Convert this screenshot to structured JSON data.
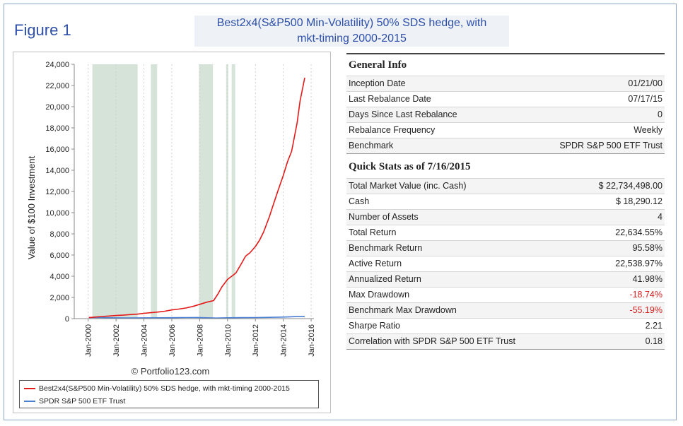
{
  "figure_label": "Figure 1",
  "figure_title_line1": "Best2x4(S&P500 Min-Volatility) 50% SDS hedge, with",
  "figure_title_line2": "mkt-timing 2000-2015",
  "watermark": "© Portfolio123.com",
  "general_info": {
    "title": "General Info",
    "rows": [
      {
        "label": "Inception Date",
        "value": "01/21/00"
      },
      {
        "label": "Last Rebalance Date",
        "value": "07/17/15"
      },
      {
        "label": "Days Since Last Rebalance",
        "value": "0"
      },
      {
        "label": "Rebalance Frequency",
        "value": "Weekly"
      },
      {
        "label": "Benchmark",
        "value": "SPDR S&P 500 ETF Trust"
      }
    ]
  },
  "quick_stats": {
    "title": "Quick Stats as of 7/16/2015",
    "rows": [
      {
        "label": "Total Market Value (inc. Cash)",
        "value": "$ 22,734,498.00",
        "negative": false
      },
      {
        "label": "Cash",
        "value": "$ 18,290.12",
        "negative": false
      },
      {
        "label": "Number of Assets",
        "value": "4",
        "negative": false
      },
      {
        "label": "Total Return",
        "value": "22,634.55%",
        "negative": false
      },
      {
        "label": "Benchmark Return",
        "value": "95.58%",
        "negative": false
      },
      {
        "label": "Active Return",
        "value": "22,538.97%",
        "negative": false
      },
      {
        "label": "Annualized Return",
        "value": "41.98%",
        "negative": false
      },
      {
        "label": "Max Drawdown",
        "value": "-18.74%",
        "negative": true
      },
      {
        "label": "Benchmark Max Drawdown",
        "value": "-55.19%",
        "negative": true
      },
      {
        "label": "Sharpe Ratio",
        "value": "2.21",
        "negative": false
      },
      {
        "label": "Correlation with SPDR S&P 500 ETF Trust",
        "value": "0.18",
        "negative": false
      }
    ]
  },
  "chart_data": {
    "type": "line",
    "title": "",
    "xlabel": "",
    "ylabel": "Value of $100 Investment",
    "xlim": [
      1999.0,
      2016.2
    ],
    "ylim": [
      0,
      24000
    ],
    "yticks": [
      "0",
      "2,000",
      "4,000",
      "6,000",
      "8,000",
      "10,000",
      "12,000",
      "14,000",
      "16,000",
      "18,000",
      "20,000",
      "22,000",
      "24,000"
    ],
    "ytick_values": [
      0,
      2000,
      4000,
      6000,
      8000,
      10000,
      12000,
      14000,
      16000,
      18000,
      20000,
      22000,
      24000
    ],
    "xticks": [
      "Jan-2000",
      "Jan-2002",
      "Jan-2004",
      "Jan-2006",
      "Jan-2008",
      "Jan-2010",
      "Jan-2012",
      "Jan-2014",
      "Jan-2016"
    ],
    "xtick_values": [
      2000,
      2002,
      2004,
      2006,
      2008,
      2010,
      2012,
      2014,
      2016
    ],
    "grid": true,
    "shaded_periods": [
      [
        2000.3,
        2003.55
      ],
      [
        2004.5,
        2004.95
      ],
      [
        2007.95,
        2008.95
      ],
      [
        2009.9,
        2010.05
      ],
      [
        2010.3,
        2010.55
      ]
    ],
    "shade_color": "#d5e3d8",
    "series": [
      {
        "name": "Best2x4(S&P500 Min-Volatility) 50% SDS hedge, with mkt-timing 2000-2015",
        "color": "#e41a1a",
        "x": [
          2000.05,
          2000.5,
          2001.0,
          2001.5,
          2002.0,
          2002.5,
          2003.0,
          2003.5,
          2004.0,
          2004.5,
          2005.0,
          2005.5,
          2006.0,
          2006.5,
          2007.0,
          2007.5,
          2008.0,
          2008.5,
          2009.0,
          2009.3,
          2009.6,
          2010.0,
          2010.3,
          2010.6,
          2011.0,
          2011.3,
          2011.6,
          2012.0,
          2012.3,
          2012.6,
          2013.0,
          2013.3,
          2013.6,
          2014.0,
          2014.3,
          2014.6,
          2015.0,
          2015.2,
          2015.54
        ],
        "y": [
          100,
          150,
          200,
          250,
          290,
          330,
          380,
          420,
          500,
          560,
          620,
          700,
          820,
          900,
          1000,
          1150,
          1350,
          1550,
          1700,
          2300,
          3000,
          3700,
          4000,
          4300,
          5200,
          5900,
          6200,
          6800,
          7400,
          8200,
          9600,
          10800,
          12000,
          13500,
          14800,
          15800,
          18500,
          20500,
          22734
        ]
      },
      {
        "name": "SPDR S&P 500 ETF Trust",
        "color": "#4a7fd4",
        "x": [
          2000.05,
          2001.0,
          2002.0,
          2002.8,
          2004.0,
          2005.0,
          2006.0,
          2007.0,
          2007.8,
          2009.2,
          2010.0,
          2011.0,
          2012.0,
          2013.0,
          2014.0,
          2015.0,
          2015.54
        ],
        "y": [
          100,
          90,
          70,
          60,
          75,
          80,
          85,
          100,
          110,
          55,
          80,
          95,
          100,
          120,
          145,
          190,
          196
        ]
      }
    ]
  }
}
